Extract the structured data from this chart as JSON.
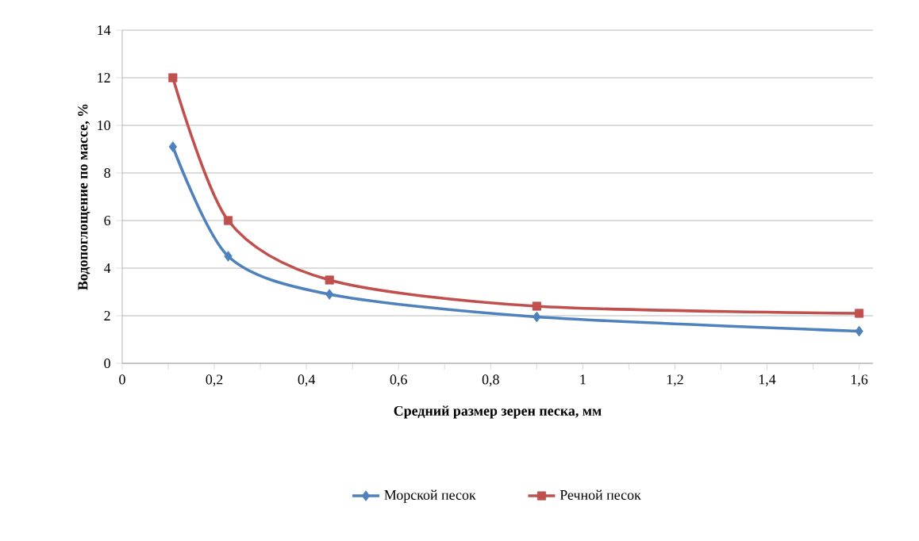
{
  "chart_data": {
    "type": "line",
    "xlabel": "Средний размер зерен песка, мм",
    "ylabel": "Водопоглощение по массе, %",
    "xlim": [
      0,
      1.63
    ],
    "ylim": [
      0,
      14
    ],
    "xticks": [
      0,
      {
        "value": 0.1,
        "label": null
      },
      {
        "value": 0.2,
        "label": "0,2"
      },
      {
        "value": 0.3,
        "label": null
      },
      {
        "value": 0.4,
        "label": "0,4"
      },
      {
        "value": 0.5,
        "label": null
      },
      {
        "value": 0.6,
        "label": "0,6"
      },
      {
        "value": 0.7,
        "label": null
      },
      {
        "value": 0.8,
        "label": "0,8"
      },
      {
        "value": 0.9,
        "label": null
      },
      1,
      {
        "value": 1.1,
        "label": null
      },
      {
        "value": 1.2,
        "label": "1,2"
      },
      {
        "value": 1.3,
        "label": null
      },
      {
        "value": 1.4,
        "label": "1,4"
      },
      {
        "value": 1.5,
        "label": null
      },
      {
        "value": 1.6,
        "label": "1,6"
      }
    ],
    "yticks": [
      0,
      2,
      4,
      6,
      8,
      10,
      12,
      14
    ],
    "grid": "y",
    "legend": "bottom",
    "series": [
      {
        "name": "Морской песок",
        "color": "#4f81bd",
        "marker": "diamond",
        "x": [
          0.11,
          0.23,
          0.45,
          0.9,
          1.6
        ],
        "values": [
          9.1,
          4.5,
          2.9,
          1.95,
          1.35
        ]
      },
      {
        "name": "Речной песок",
        "color": "#c0504d",
        "marker": "square",
        "x": [
          0.11,
          0.23,
          0.45,
          0.9,
          1.6
        ],
        "values": [
          12,
          6,
          3.5,
          2.4,
          2.1
        ]
      }
    ]
  }
}
